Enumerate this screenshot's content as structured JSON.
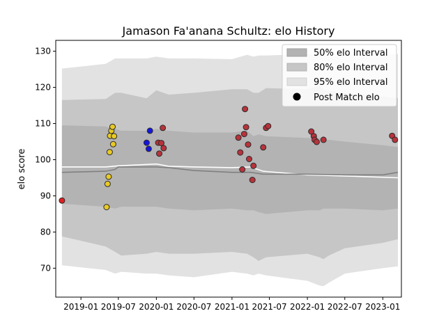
{
  "chart_data": {
    "type": "scatter",
    "title": "Jamason Fa'anana Schultz: elo History",
    "xlabel": "",
    "ylabel": "elo score",
    "xlim": [
      "2018-09-01",
      "2023-04-01"
    ],
    "ylim": [
      62,
      133
    ],
    "y_ticks": [
      70,
      80,
      90,
      100,
      110,
      120,
      130
    ],
    "x_ticks": [
      "2019-01",
      "2019-07",
      "2020-01",
      "2020-07",
      "2021-01",
      "2021-07",
      "2022-01",
      "2022-07",
      "2023-01"
    ],
    "grid": false,
    "legend_position": "top-right",
    "legend": [
      {
        "label": "50% elo Interval",
        "kind": "band",
        "color": "#b3b3b3"
      },
      {
        "label": "80% elo Interval",
        "kind": "band",
        "color": "#c6c6c6"
      },
      {
        "label": "95% elo Interval",
        "kind": "band",
        "color": "#e2e2e2"
      },
      {
        "label": "Post Match elo",
        "kind": "marker",
        "color": "#000000"
      }
    ],
    "intervals": {
      "x": [
        "2018-10-01",
        "2019-05-01",
        "2019-06-15",
        "2019-07-15",
        "2019-11-15",
        "2020-01-01",
        "2020-03-01",
        "2020-07-01",
        "2021-01-01",
        "2021-03-15",
        "2021-04-15",
        "2021-05-10",
        "2021-06-15",
        "2022-01-01",
        "2022-03-01",
        "2022-03-20",
        "2022-04-15",
        "2022-07-01",
        "2023-01-01",
        "2023-03-15"
      ],
      "p95_upper": [
        125.2,
        126.5,
        128.0,
        128.0,
        128.0,
        128.5,
        128.0,
        128.0,
        127.8,
        129.0,
        128.5,
        128.8,
        128.8,
        129.2,
        129.0,
        129.0,
        128.5,
        129.0,
        129.0,
        129.2
      ],
      "p80_upper": [
        116.5,
        116.8,
        118.5,
        118.5,
        117.0,
        119.2,
        118.0,
        118.5,
        119.5,
        119.5,
        118.5,
        118.5,
        119.8,
        119.5,
        120.5,
        119.5,
        119.0,
        118.5,
        117.5,
        117.0
      ],
      "p50_upper": [
        109.5,
        109.2,
        108.5,
        108.0,
        108.0,
        108.5,
        108.0,
        107.5,
        107.5,
        108.0,
        106.5,
        107.0,
        106.5,
        106.0,
        106.0,
        105.5,
        105.5,
        105.0,
        104.0,
        103.5
      ],
      "p50_lower": [
        87.8,
        87.0,
        86.5,
        87.0,
        87.0,
        87.0,
        86.5,
        86.0,
        86.5,
        86.0,
        86.0,
        85.5,
        85.0,
        86.0,
        86.0,
        86.5,
        86.5,
        86.5,
        86.0,
        86.5
      ],
      "p80_lower": [
        78.8,
        76.0,
        74.5,
        73.5,
        74.0,
        74.5,
        74.0,
        74.0,
        74.5,
        74.0,
        73.0,
        72.0,
        73.0,
        74.0,
        73.0,
        72.5,
        73.5,
        75.5,
        77.0,
        78.0
      ],
      "p95_lower": [
        70.8,
        69.5,
        68.5,
        69.0,
        68.5,
        68.5,
        68.0,
        67.5,
        69.0,
        68.5,
        68.0,
        68.5,
        68.0,
        66.5,
        65.2,
        65.0,
        66.0,
        68.5,
        70.0,
        70.5
      ]
    },
    "median_line": {
      "x": [
        "2018-10-01",
        "2019-05-01",
        "2019-06-15",
        "2019-07-01",
        "2020-01-01",
        "2020-03-01",
        "2020-07-01",
        "2021-01-01",
        "2021-04-01",
        "2021-06-01",
        "2022-01-01",
        "2022-07-01",
        "2023-01-01",
        "2023-03-15"
      ],
      "y": [
        96.5,
        96.8,
        97.3,
        98.0,
        98.0,
        97.8,
        97.0,
        96.5,
        96.5,
        96.0,
        96.0,
        95.8,
        95.8,
        96.5
      ]
    },
    "mean_line": {
      "x": [
        "2018-10-01",
        "2019-05-01",
        "2019-07-01",
        "2020-01-01",
        "2020-03-01",
        "2020-07-01",
        "2021-01-01",
        "2021-04-01",
        "2021-06-01",
        "2022-01-01",
        "2022-07-01",
        "2023-03-15"
      ],
      "y": [
        98.0,
        98.0,
        98.3,
        98.8,
        98.2,
        98.0,
        97.8,
        98.0,
        96.8,
        95.8,
        95.5,
        95.0
      ]
    },
    "series": [
      {
        "color": "#e02020",
        "points": [
          [
            "2018-10-01",
            88.7
          ]
        ]
      },
      {
        "color": "#e8c926",
        "points": [
          [
            "2019-05-05",
            86.9
          ],
          [
            "2019-05-10",
            93.3
          ],
          [
            "2019-05-15",
            95.3
          ],
          [
            "2019-05-20",
            102.1
          ],
          [
            "2019-05-22",
            106.6
          ],
          [
            "2019-05-28",
            108.0
          ],
          [
            "2019-06-03",
            109.1
          ],
          [
            "2019-06-06",
            104.3
          ],
          [
            "2019-06-10",
            106.5
          ]
        ]
      },
      {
        "color": "#1515e0",
        "points": [
          [
            "2019-11-15",
            104.7
          ],
          [
            "2019-11-25",
            103.0
          ],
          [
            "2019-12-01",
            108.0
          ]
        ]
      },
      {
        "color": "#b8333b",
        "points": [
          [
            "2020-01-10",
            104.7
          ],
          [
            "2020-01-15",
            101.7
          ],
          [
            "2020-01-25",
            104.6
          ],
          [
            "2020-02-01",
            108.8
          ],
          [
            "2020-02-05",
            103.2
          ],
          [
            "2021-02-01",
            106.1
          ],
          [
            "2021-02-10",
            102.0
          ],
          [
            "2021-02-20",
            97.3
          ],
          [
            "2021-03-01",
            107.1
          ],
          [
            "2021-03-05",
            114.0
          ],
          [
            "2021-03-10",
            109.0
          ],
          [
            "2021-03-20",
            104.2
          ],
          [
            "2021-03-25",
            100.2
          ],
          [
            "2021-04-10",
            94.4
          ],
          [
            "2021-04-15",
            98.3
          ],
          [
            "2021-06-01",
            103.4
          ],
          [
            "2021-06-15",
            108.8
          ],
          [
            "2021-06-25",
            109.3
          ],
          [
            "2022-01-20",
            107.8
          ],
          [
            "2022-02-01",
            106.5
          ],
          [
            "2022-02-05",
            105.5
          ],
          [
            "2022-02-15",
            104.9
          ],
          [
            "2022-03-20",
            105.5
          ],
          [
            "2023-02-15",
            106.6
          ],
          [
            "2023-03-01",
            105.5
          ]
        ]
      }
    ]
  }
}
